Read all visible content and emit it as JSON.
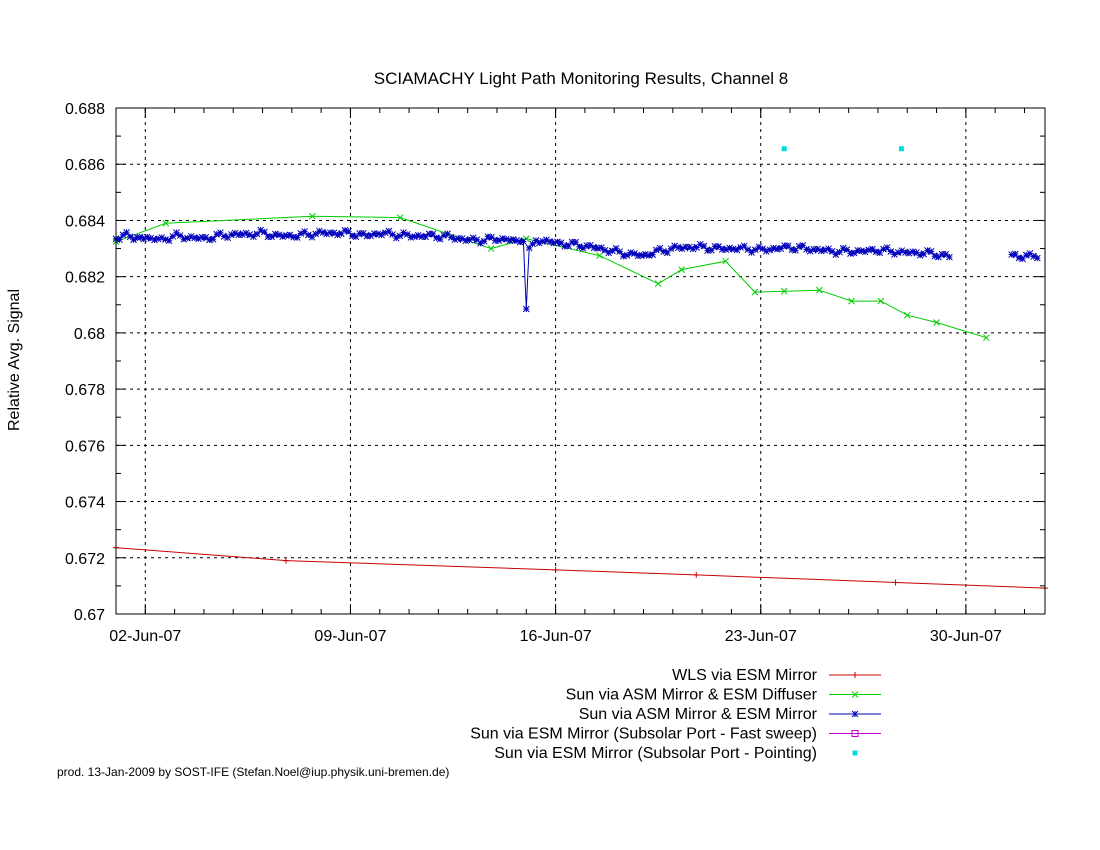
{
  "chart_data": {
    "type": "line",
    "title": "SCIAMACHY Light Path Monitoring Results, Channel 8",
    "ylabel": "Relative Avg. Signal",
    "xlabel": "",
    "ylim": [
      0.67,
      0.688
    ],
    "yticks": [
      "0.67",
      "0.672",
      "0.674",
      "0.676",
      "0.678",
      "0.68",
      "0.682",
      "0.684",
      "0.686",
      "0.688"
    ],
    "xlim": [
      0.0,
      31.7
    ],
    "x_unit": "days after 31-May-07",
    "xticks": [
      {
        "x": 1.0,
        "label": "02-Jun-07"
      },
      {
        "x": 8.0,
        "label": "09-Jun-07"
      },
      {
        "x": 15.0,
        "label": "16-Jun-07"
      },
      {
        "x": 22.0,
        "label": "23-Jun-07"
      },
      {
        "x": 29.0,
        "label": "30-Jun-07"
      }
    ],
    "grid": true,
    "legend_position": "below",
    "series": [
      {
        "name": "WLS via ESM Mirror",
        "color": "#cc0000",
        "marker": "plus",
        "points": [
          [
            0.0,
            0.67236
          ],
          [
            5.8,
            0.6719
          ],
          [
            15.0,
            0.67157
          ],
          [
            19.8,
            0.67139
          ],
          [
            26.6,
            0.67112
          ],
          [
            31.7,
            0.67092
          ]
        ]
      },
      {
        "name": "Sun via ASM Mirror & ESM Diffuser",
        "color": "#00cc00",
        "marker": "x",
        "points": [
          [
            0.0,
            0.68325
          ],
          [
            1.7,
            0.6839
          ],
          [
            6.7,
            0.68415
          ],
          [
            9.7,
            0.6841
          ],
          [
            12.8,
            0.683
          ],
          [
            14.0,
            0.68335
          ],
          [
            16.5,
            0.68275
          ],
          [
            18.5,
            0.68175
          ],
          [
            19.3,
            0.68225
          ],
          [
            20.8,
            0.68255
          ],
          [
            21.8,
            0.68145
          ],
          [
            22.8,
            0.68148
          ],
          [
            24.0,
            0.68152
          ],
          [
            25.1,
            0.68113
          ],
          [
            26.1,
            0.68113
          ],
          [
            27.0,
            0.68063
          ],
          [
            28.0,
            0.68037
          ],
          [
            29.7,
            0.67983
          ]
        ]
      },
      {
        "name": "Sun via ASM Mirror & ESM Mirror",
        "color": "#0000bb",
        "marker": "star",
        "points": [
          [
            0.0,
            0.6833
          ],
          [
            0.3,
            0.68355
          ],
          [
            0.6,
            0.68335
          ],
          [
            1.0,
            0.6834
          ],
          [
            1.5,
            0.6833
          ],
          [
            2.0,
            0.68345
          ],
          [
            2.5,
            0.6834
          ],
          [
            3.0,
            0.68335
          ],
          [
            3.5,
            0.68345
          ],
          [
            4.0,
            0.6835
          ],
          [
            4.5,
            0.6835
          ],
          [
            5.0,
            0.68355
          ],
          [
            5.5,
            0.68345
          ],
          [
            6.0,
            0.68345
          ],
          [
            6.5,
            0.6835
          ],
          [
            7.0,
            0.68355
          ],
          [
            7.5,
            0.68355
          ],
          [
            8.0,
            0.68355
          ],
          [
            8.5,
            0.68345
          ],
          [
            9.0,
            0.68355
          ],
          [
            9.5,
            0.6835
          ],
          [
            10.0,
            0.68345
          ],
          [
            10.5,
            0.68345
          ],
          [
            11.0,
            0.68345
          ],
          [
            11.5,
            0.6834
          ],
          [
            12.0,
            0.6833
          ],
          [
            12.5,
            0.6833
          ],
          [
            13.0,
            0.68335
          ],
          [
            13.5,
            0.6833
          ],
          [
            13.9,
            0.68325
          ],
          [
            14.0,
            0.68085
          ],
          [
            14.1,
            0.6831
          ],
          [
            14.5,
            0.6833
          ],
          [
            15.0,
            0.6832
          ],
          [
            15.5,
            0.68315
          ],
          [
            16.0,
            0.6831
          ],
          [
            16.5,
            0.683
          ],
          [
            17.0,
            0.6829
          ],
          [
            17.5,
            0.6828
          ],
          [
            18.0,
            0.68275
          ],
          [
            18.5,
            0.6829
          ],
          [
            19.0,
            0.683
          ],
          [
            19.5,
            0.68305
          ],
          [
            20.0,
            0.68305
          ],
          [
            20.5,
            0.683
          ],
          [
            21.0,
            0.683
          ],
          [
            21.5,
            0.683
          ],
          [
            22.0,
            0.68295
          ],
          [
            22.5,
            0.683
          ],
          [
            23.0,
            0.68305
          ],
          [
            23.5,
            0.683
          ],
          [
            24.0,
            0.68295
          ],
          [
            24.5,
            0.6829
          ],
          [
            25.0,
            0.6829
          ],
          [
            25.5,
            0.6829
          ],
          [
            26.0,
            0.68295
          ],
          [
            26.5,
            0.6829
          ],
          [
            27.0,
            0.68285
          ],
          [
            27.5,
            0.68285
          ],
          [
            28.0,
            0.6828
          ],
          [
            28.5,
            0.6827
          ],
          [
            30.5,
            0.6827
          ],
          [
            31.0,
            0.68275
          ],
          [
            31.5,
            0.6827
          ]
        ]
      },
      {
        "name": "Sun via ESM Mirror (Subsolar Port - Fast sweep)",
        "color": "#cc00cc",
        "marker": "square-open",
        "points": []
      },
      {
        "name": "Sun via ESM Mirror (Subsolar Port - Pointing)",
        "color": "#00dddd",
        "marker": "dot",
        "points": [
          [
            22.8,
            0.68655
          ],
          [
            26.8,
            0.68655
          ]
        ]
      }
    ]
  },
  "footer": "prod. 13-Jan-2009 by SOST-IFE (Stefan.Noel@iup.physik.uni-bremen.de)"
}
